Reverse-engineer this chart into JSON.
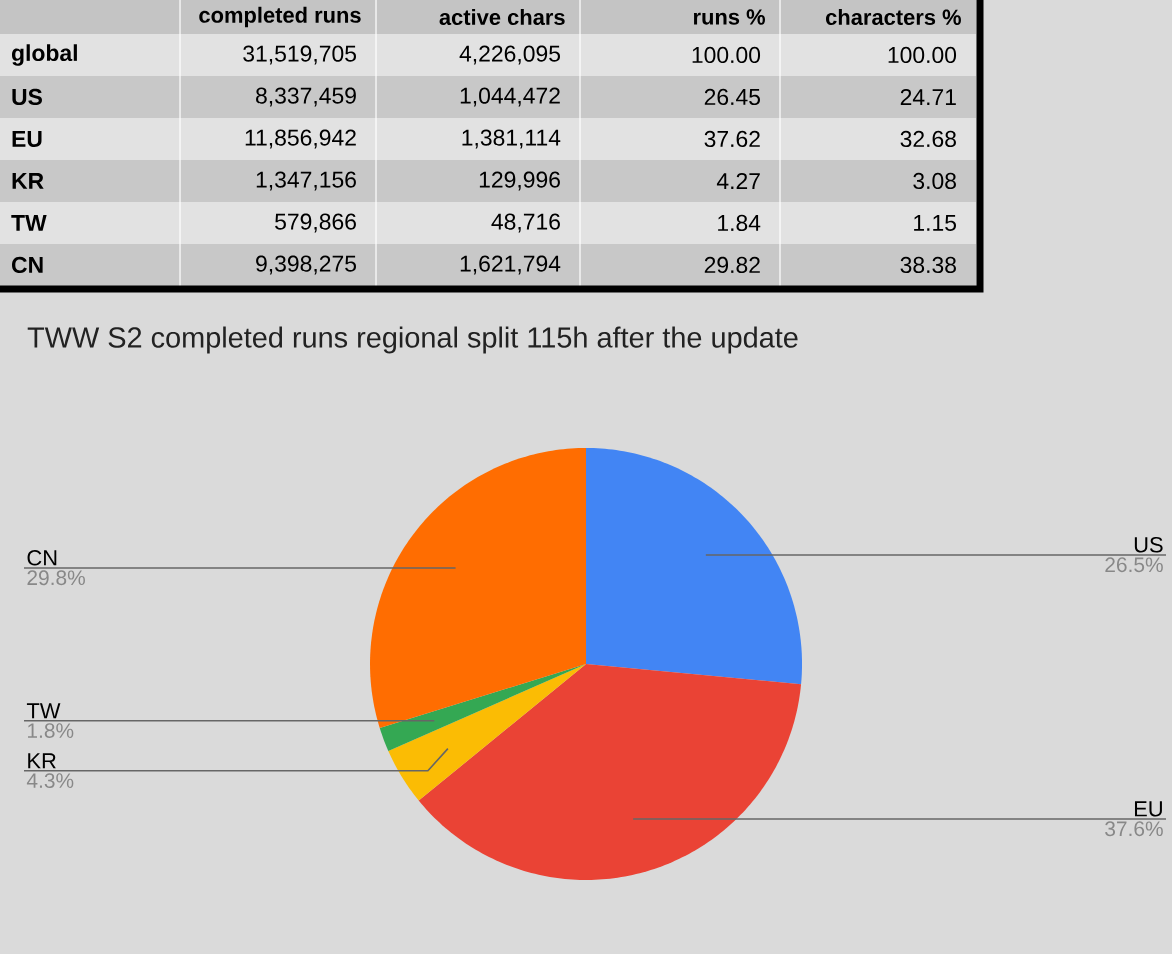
{
  "chart_data": [
    {
      "type": "other",
      "annotations": [
        "completed runs",
        "active chars",
        "runs %",
        "characters %",
        "global",
        "31,519,705",
        "4,226,095",
        "100.00",
        "100.00",
        "US",
        "8,337,459",
        "1,044,472",
        "26.45",
        "24.71",
        "EU",
        "11,856,942",
        "1,381,114",
        "37.62",
        "32.68",
        "KR",
        "1,347,156",
        "129,996",
        "4.27",
        "3.08",
        "TW",
        "579,866",
        "48,716",
        "1.84",
        "1.15",
        "CN",
        "9,398,275",
        "1,621,794",
        "29.82",
        "38.38"
      ]
    },
    {
      "type": "pie",
      "title": "TWW S2 completed runs regional split 115h after the update",
      "categories": [
        "US",
        "EU",
        "KR",
        "TW",
        "CN"
      ],
      "values": [
        26.5,
        37.6,
        4.3,
        1.8,
        29.8
      ],
      "colors": [
        "#4285f4",
        "#ea4335",
        "#fbbc04",
        "#34a853",
        "#ff6d01"
      ],
      "value_labels": [
        "26.5%",
        "37.6%",
        "4.3%",
        "1.8%",
        "29.8%"
      ]
    }
  ]
}
